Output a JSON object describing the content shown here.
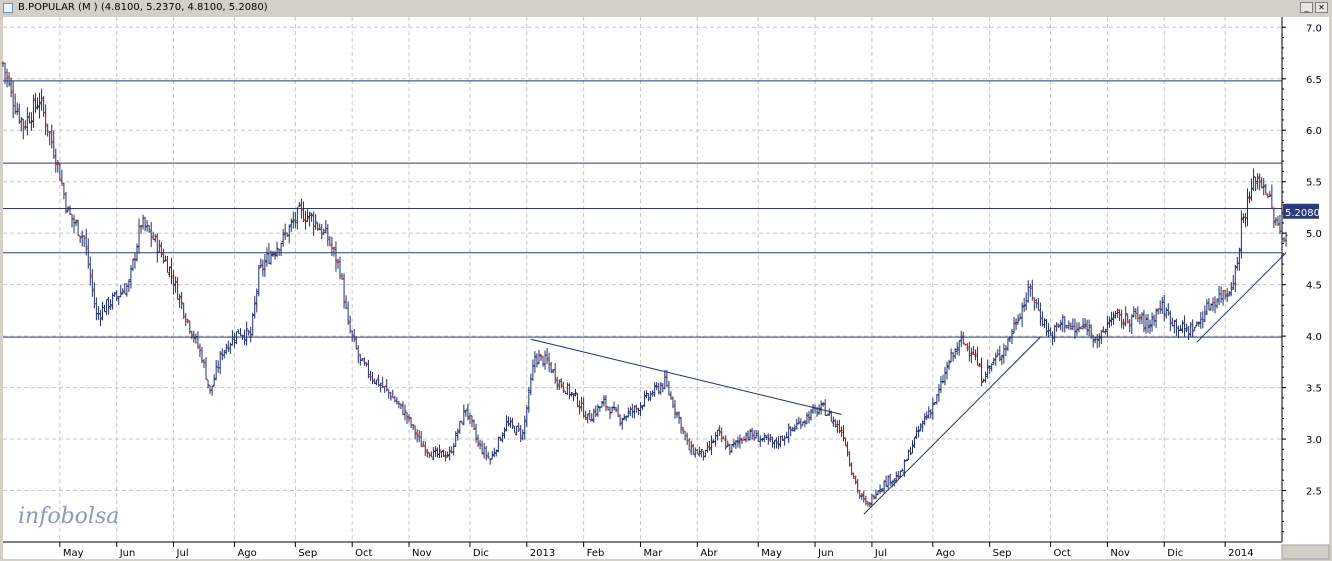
{
  "window": {
    "title": "B.POPULAR (M ) (4.8100, 5.2370, 4.8100, 5.2080)",
    "minimize_glyph": "_",
    "close_glyph": "✕"
  },
  "logo": "infobolsa",
  "chart_data": {
    "type": "ohlc",
    "ylim": [
      2.0,
      7.1
    ],
    "yticks": [
      "7.0",
      "6.5",
      "6.0",
      "5.5",
      "5.0",
      "4.5",
      "4.0",
      "3.5",
      "3.0",
      "2.5"
    ],
    "ytick_values": [
      7.0,
      6.5,
      6.0,
      5.5,
      5.0,
      4.5,
      4.0,
      3.5,
      3.0,
      2.5
    ],
    "xticks": [
      "May",
      "Jun",
      "Jul",
      "Ago",
      "Sep",
      "Oct",
      "Nov",
      "Dic",
      "2013",
      "Feb",
      "Mar",
      "Abr",
      "May",
      "Jun",
      "Jul",
      "Ago",
      "Sep",
      "Oct",
      "Nov",
      "Dic",
      "2014"
    ],
    "xtick_index": [
      28,
      56,
      84,
      114,
      144,
      172,
      200,
      230,
      258,
      286,
      314,
      342,
      372,
      400,
      428,
      458,
      486,
      516,
      544,
      572,
      602
    ],
    "x_range": [
      0,
      630
    ],
    "last_price_label": "5.2080",
    "last_price": 5.208,
    "hlines": [
      6.48,
      5.68,
      5.24,
      4.81,
      3.99
    ],
    "trendlines": [
      {
        "from": [
          260,
          3.97
        ],
        "to": [
          413,
          3.24
        ]
      },
      {
        "from": [
          424,
          2.27
        ],
        "to": [
          511,
          3.99
        ]
      },
      {
        "from": [
          588,
          3.94
        ],
        "to": [
          632,
          4.81
        ]
      }
    ],
    "anchors": [
      [
        0,
        6.65
      ],
      [
        4,
        6.35
      ],
      [
        10,
        6.05
      ],
      [
        18,
        6.3
      ],
      [
        26,
        5.75
      ],
      [
        32,
        5.2
      ],
      [
        40,
        4.95
      ],
      [
        46,
        4.2
      ],
      [
        54,
        4.35
      ],
      [
        62,
        4.5
      ],
      [
        68,
        5.1
      ],
      [
        74,
        4.95
      ],
      [
        82,
        4.65
      ],
      [
        90,
        4.2
      ],
      [
        98,
        3.8
      ],
      [
        102,
        3.45
      ],
      [
        108,
        3.85
      ],
      [
        116,
        4.05
      ],
      [
        122,
        4.0
      ],
      [
        126,
        4.6
      ],
      [
        130,
        4.75
      ],
      [
        138,
        4.95
      ],
      [
        146,
        5.2
      ],
      [
        152,
        5.15
      ],
      [
        160,
        4.95
      ],
      [
        166,
        4.65
      ],
      [
        170,
        4.1
      ],
      [
        176,
        3.75
      ],
      [
        182,
        3.6
      ],
      [
        190,
        3.45
      ],
      [
        198,
        3.25
      ],
      [
        206,
        2.95
      ],
      [
        212,
        2.85
      ],
      [
        220,
        2.85
      ],
      [
        228,
        3.3
      ],
      [
        234,
        2.95
      ],
      [
        240,
        2.8
      ],
      [
        248,
        3.15
      ],
      [
        256,
        3.05
      ],
      [
        262,
        3.8
      ],
      [
        268,
        3.75
      ],
      [
        274,
        3.55
      ],
      [
        282,
        3.4
      ],
      [
        288,
        3.2
      ],
      [
        296,
        3.35
      ],
      [
        304,
        3.2
      ],
      [
        312,
        3.3
      ],
      [
        320,
        3.45
      ],
      [
        326,
        3.55
      ],
      [
        332,
        3.25
      ],
      [
        338,
        2.9
      ],
      [
        346,
        2.85
      ],
      [
        352,
        3.05
      ],
      [
        358,
        2.9
      ],
      [
        366,
        3.05
      ],
      [
        374,
        3.0
      ],
      [
        380,
        2.95
      ],
      [
        386,
        3.05
      ],
      [
        392,
        3.15
      ],
      [
        398,
        3.25
      ],
      [
        404,
        3.3
      ],
      [
        410,
        3.15
      ],
      [
        414,
        3.05
      ],
      [
        418,
        2.7
      ],
      [
        422,
        2.45
      ],
      [
        426,
        2.35
      ],
      [
        430,
        2.5
      ],
      [
        436,
        2.6
      ],
      [
        442,
        2.65
      ],
      [
        448,
        2.95
      ],
      [
        454,
        3.2
      ],
      [
        460,
        3.4
      ],
      [
        466,
        3.75
      ],
      [
        472,
        3.95
      ],
      [
        478,
        3.85
      ],
      [
        482,
        3.6
      ],
      [
        488,
        3.75
      ],
      [
        494,
        3.9
      ],
      [
        500,
        4.2
      ],
      [
        506,
        4.45
      ],
      [
        510,
        4.25
      ],
      [
        516,
        4.0
      ],
      [
        522,
        4.15
      ],
      [
        528,
        4.05
      ],
      [
        534,
        4.1
      ],
      [
        540,
        3.95
      ],
      [
        546,
        4.2
      ],
      [
        552,
        4.15
      ],
      [
        558,
        4.2
      ],
      [
        564,
        4.1
      ],
      [
        570,
        4.3
      ],
      [
        576,
        4.15
      ],
      [
        582,
        4.05
      ],
      [
        588,
        4.1
      ],
      [
        594,
        4.3
      ],
      [
        600,
        4.4
      ],
      [
        604,
        4.45
      ],
      [
        608,
        4.7
      ],
      [
        610,
        5.1
      ],
      [
        614,
        5.35
      ],
      [
        617,
        5.55
      ],
      [
        622,
        5.45
      ],
      [
        626,
        5.15
      ],
      [
        630,
        4.95
      ],
      [
        632,
        5.05
      ]
    ]
  }
}
